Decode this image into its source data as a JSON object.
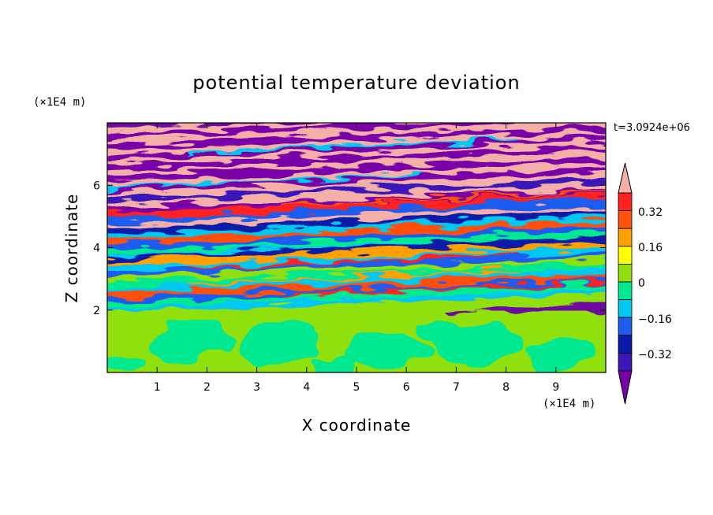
{
  "chart_data": {
    "type": "heatmap",
    "title": "potential temperature deviation",
    "xlabel": "X coordinate",
    "ylabel": "Z coordinate",
    "x_unit": "(×1E4 m)",
    "y_unit": "(×1E4 m)",
    "time_label": "t=3.0924e+06",
    "xlim": [
      0,
      10
    ],
    "ylim": [
      0,
      8
    ],
    "x_ticks": [
      "1",
      "2",
      "3",
      "4",
      "5",
      "6",
      "7",
      "8",
      "9"
    ],
    "y_ticks": [
      "2",
      "4",
      "6"
    ],
    "colorbar": {
      "labels": [
        "0.32",
        "0.16",
        "0",
        "−0.16",
        "−0.32"
      ],
      "levels": [
        -0.4,
        -0.32,
        -0.24,
        -0.16,
        -0.08,
        0,
        0.08,
        0.16,
        0.24,
        0.32,
        0.4
      ],
      "colors": [
        "#7a00a8",
        "#3a18b8",
        "#0a1aa8",
        "#1e5cf0",
        "#00c8f0",
        "#00e890",
        "#90e010",
        "#ffff00",
        "#ffa000",
        "#ff5010",
        "#ff2020",
        "#f4b0a8"
      ]
    }
  }
}
